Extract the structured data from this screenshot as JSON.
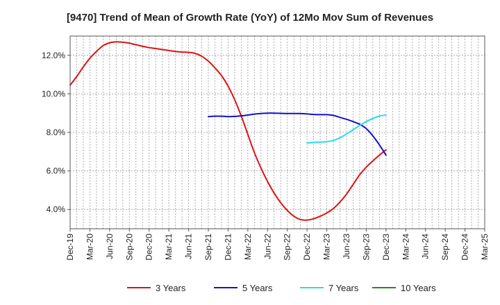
{
  "chart_data": {
    "type": "line",
    "title": "[9470]  Trend of Mean of Growth Rate (YoY) of 12Mo Mov Sum of Revenues",
    "xlabel": "",
    "ylabel": "",
    "x_tick_labels": [
      "Dec-19",
      "Mar-20",
      "Jun-20",
      "Sep-20",
      "Dec-20",
      "Mar-21",
      "Jun-21",
      "Sep-21",
      "Dec-21",
      "Mar-22",
      "Jun-22",
      "Sep-22",
      "Dec-22",
      "Mar-23",
      "Jun-23",
      "Sep-23",
      "Dec-23",
      "Mar-24",
      "Jun-24",
      "Sep-24",
      "Dec-24",
      "Mar-25"
    ],
    "y_ticks": [
      4.0,
      6.0,
      8.0,
      10.0,
      12.0
    ],
    "y_tick_labels": [
      "4.0%",
      "6.0%",
      "8.0%",
      "10.0%",
      "12.0%"
    ],
    "ylim": [
      3.0,
      13.0
    ],
    "grid": true,
    "legend_position": "bottom",
    "series": [
      {
        "name": "3 Years",
        "color": "#dd1111",
        "points": [
          [
            0,
            10.45
          ],
          [
            1,
            10.9
          ],
          [
            2,
            11.4
          ],
          [
            3,
            11.85
          ],
          [
            4,
            12.2
          ],
          [
            5,
            12.5
          ],
          [
            6,
            12.65
          ],
          [
            7,
            12.7
          ],
          [
            8,
            12.68
          ],
          [
            9,
            12.63
          ],
          [
            10,
            12.55
          ],
          [
            11,
            12.47
          ],
          [
            12,
            12.4
          ],
          [
            13,
            12.35
          ],
          [
            14,
            12.3
          ],
          [
            15,
            12.25
          ],
          [
            16,
            12.2
          ],
          [
            17,
            12.17
          ],
          [
            18,
            12.15
          ],
          [
            19,
            12.1
          ],
          [
            20,
            11.95
          ],
          [
            21,
            11.7
          ],
          [
            22,
            11.35
          ],
          [
            23,
            10.95
          ],
          [
            24,
            10.4
          ],
          [
            25,
            9.7
          ],
          [
            26,
            8.85
          ],
          [
            27,
            7.9
          ],
          [
            28,
            6.95
          ],
          [
            29,
            6.15
          ],
          [
            30,
            5.45
          ],
          [
            31,
            4.85
          ],
          [
            32,
            4.35
          ],
          [
            33,
            3.95
          ],
          [
            34,
            3.65
          ],
          [
            35,
            3.48
          ],
          [
            36,
            3.45
          ],
          [
            37,
            3.52
          ],
          [
            38,
            3.65
          ],
          [
            39,
            3.82
          ],
          [
            40,
            4.05
          ],
          [
            41,
            4.38
          ],
          [
            42,
            4.8
          ],
          [
            43,
            5.3
          ],
          [
            44,
            5.8
          ],
          [
            45,
            6.2
          ],
          [
            46,
            6.52
          ],
          [
            47,
            6.82
          ],
          [
            48,
            7.1
          ]
        ]
      },
      {
        "name": "5 Years",
        "color": "#1111cc",
        "points": [
          [
            21,
            8.82
          ],
          [
            22,
            8.84
          ],
          [
            23,
            8.84
          ],
          [
            24,
            8.82
          ],
          [
            25,
            8.83
          ],
          [
            26,
            8.86
          ],
          [
            27,
            8.9
          ],
          [
            28,
            8.95
          ],
          [
            29,
            8.98
          ],
          [
            30,
            9.0
          ],
          [
            31,
            9.0
          ],
          [
            32,
            8.99
          ],
          [
            33,
            8.98
          ],
          [
            34,
            8.98
          ],
          [
            35,
            8.98
          ],
          [
            36,
            8.96
          ],
          [
            37,
            8.93
          ],
          [
            38,
            8.92
          ],
          [
            39,
            8.92
          ],
          [
            40,
            8.88
          ],
          [
            41,
            8.78
          ],
          [
            42,
            8.68
          ],
          [
            43,
            8.56
          ],
          [
            44,
            8.42
          ],
          [
            45,
            8.2
          ],
          [
            46,
            7.82
          ],
          [
            47,
            7.35
          ],
          [
            48,
            6.82
          ]
        ]
      },
      {
        "name": "7 Years",
        "color": "#22ddee",
        "points": [
          [
            36,
            7.45
          ],
          [
            37,
            7.48
          ],
          [
            38,
            7.5
          ],
          [
            39,
            7.52
          ],
          [
            40,
            7.58
          ],
          [
            41,
            7.72
          ],
          [
            42,
            7.92
          ],
          [
            43,
            8.14
          ],
          [
            44,
            8.36
          ],
          [
            45,
            8.56
          ],
          [
            46,
            8.72
          ],
          [
            47,
            8.85
          ],
          [
            48,
            8.9
          ]
        ]
      },
      {
        "name": "10 Years",
        "color": "#228822",
        "points": []
      }
    ]
  }
}
